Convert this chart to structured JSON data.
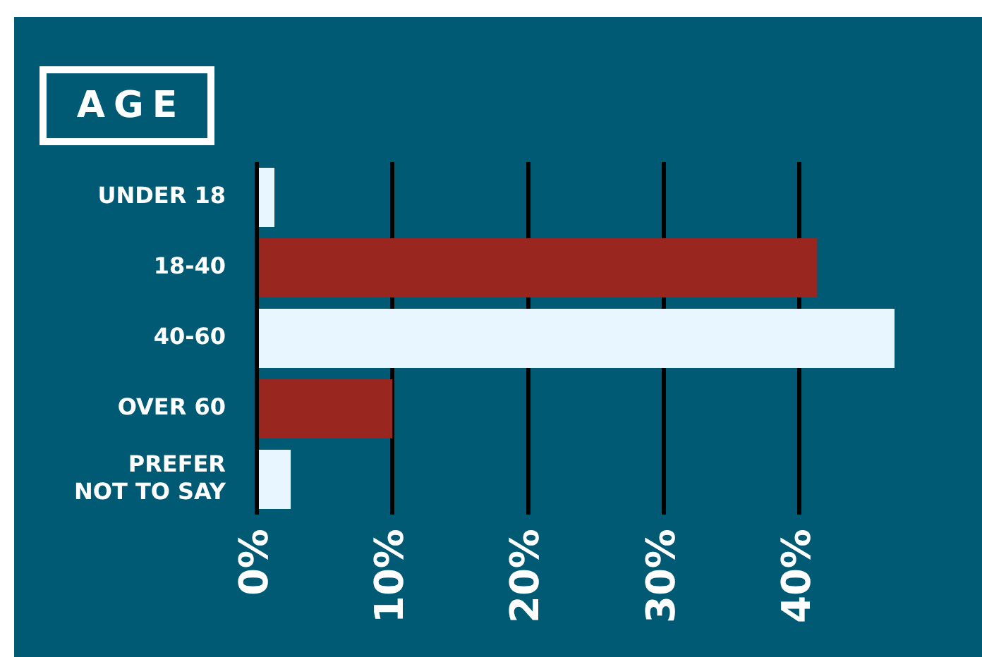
{
  "chart_data": {
    "type": "bar",
    "orientation": "horizontal",
    "title": "AGE",
    "categories": [
      "UNDER 18",
      "18-40",
      "40-60",
      "OVER 60",
      "PREFER NOT TO SAY"
    ],
    "values": [
      1.3,
      41.3,
      47,
      10,
      2.5
    ],
    "colors": [
      "#e8f6ff",
      "#9a2620",
      "#e8f6ff",
      "#9a2620",
      "#e8f6ff"
    ],
    "xlim": [
      0,
      47
    ],
    "xticks": [
      {
        "value": 0,
        "label": "0%"
      },
      {
        "value": 10,
        "label": "10%"
      },
      {
        "value": 20,
        "label": "20%"
      },
      {
        "value": 30,
        "label": "30%"
      },
      {
        "value": 40,
        "label": "40%"
      }
    ],
    "grid": "x"
  }
}
